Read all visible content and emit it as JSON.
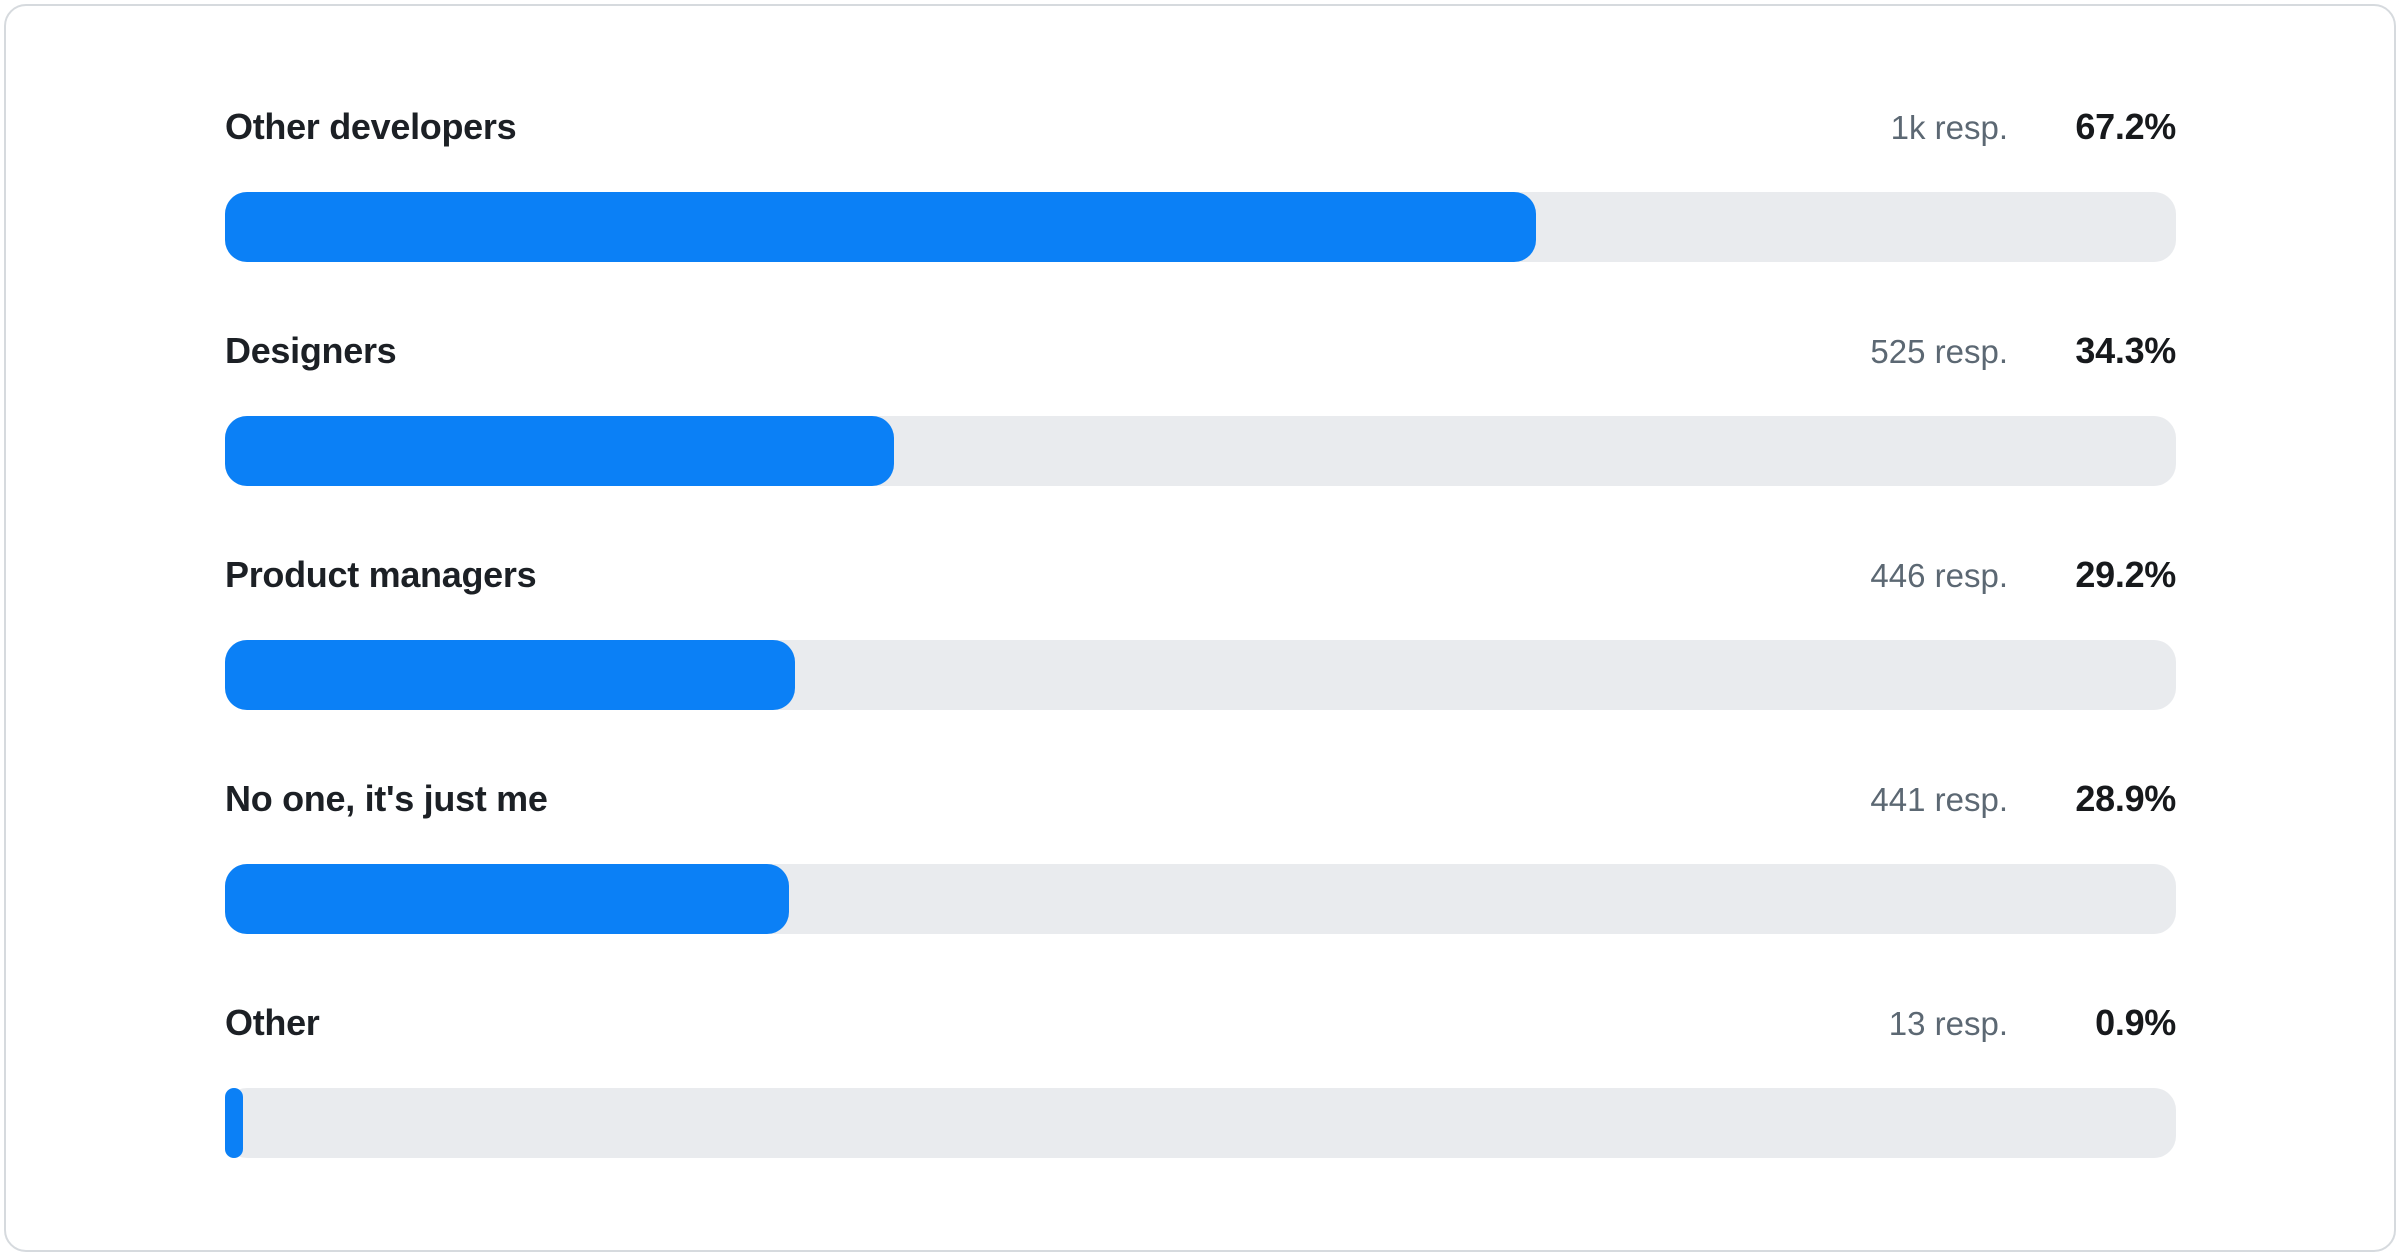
{
  "colors": {
    "bar_fill": "#0b80f6",
    "bar_track": "#e9ebee",
    "label_text": "#1c2025",
    "responses_text": "#5c6873",
    "percent_text": "#17191c",
    "card_border": "#d6dade"
  },
  "rows": [
    {
      "label": "Other developers",
      "responses": "1k resp.",
      "percent": "67.2%",
      "value": 67.2
    },
    {
      "label": "Designers",
      "responses": "525 resp.",
      "percent": "34.3%",
      "value": 34.3
    },
    {
      "label": "Product managers",
      "responses": "446 resp.",
      "percent": "29.2%",
      "value": 29.2
    },
    {
      "label": "No one, it's just me",
      "responses": "441 resp.",
      "percent": "28.9%",
      "value": 28.9
    },
    {
      "label": "Other",
      "responses": "13 resp.",
      "percent": "0.9%",
      "value": 0.9
    }
  ],
  "chart_data": {
    "type": "bar",
    "orientation": "horizontal",
    "title": "",
    "xlabel": "",
    "ylabel": "",
    "xlim": [
      0,
      100
    ],
    "grid": false,
    "legend": "none",
    "categories": [
      "Other developers",
      "Designers",
      "Product managers",
      "No one, it's just me",
      "Other"
    ],
    "values": [
      67.2,
      34.3,
      29.2,
      28.9,
      0.9
    ],
    "value_unit": "%",
    "data_labels": [
      "67.2%",
      "34.3%",
      "29.2%",
      "28.9%",
      "0.9%"
    ],
    "respondent_labels": [
      "1k resp.",
      "525 resp.",
      "446 resp.",
      "441 resp.",
      "13 resp."
    ]
  }
}
